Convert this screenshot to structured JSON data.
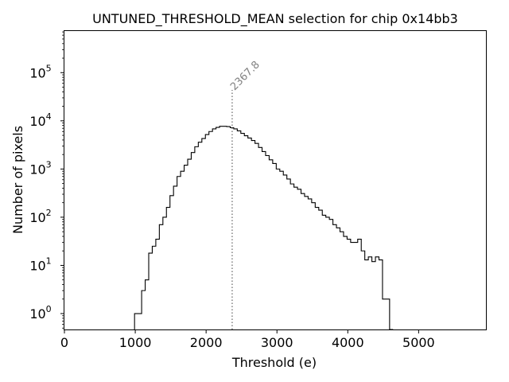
{
  "chart_data": {
    "type": "histogram",
    "title": "UNTUNED_THRESHOLD_MEAN selection for chip 0x14bb3",
    "xlabel": "Threshold (e)",
    "ylabel": "Number of pixels",
    "xlim": [
      0,
      5950
    ],
    "ylog_exponent_range": [
      -0.33,
      5.88
    ],
    "x_ticks": [
      0,
      1000,
      2000,
      3000,
      4000,
      5000
    ],
    "x_tick_labels": [
      "0",
      "1000",
      "2000",
      "3000",
      "4000",
      "5000"
    ],
    "y_ticks": [
      0,
      1,
      2,
      3,
      4,
      5
    ],
    "y_tick_base": "10",
    "mean_line": {
      "value": 2367.8,
      "label": "2367.8",
      "color": "#808080"
    },
    "bins": {
      "start": 990,
      "width": 50,
      "counts": [
        1,
        1,
        3,
        5,
        18,
        25,
        35,
        70,
        100,
        160,
        280,
        440,
        700,
        900,
        1200,
        1600,
        2200,
        2900,
        3600,
        4300,
        5200,
        6000,
        6800,
        7300,
        7700,
        7700,
        7600,
        7200,
        6800,
        6200,
        5500,
        4900,
        4400,
        3900,
        3400,
        2800,
        2300,
        1900,
        1550,
        1300,
        1000,
        900,
        750,
        620,
        490,
        420,
        380,
        310,
        270,
        240,
        200,
        160,
        140,
        110,
        100,
        90,
        70,
        60,
        50,
        40,
        35,
        30,
        30,
        35,
        20,
        13,
        15,
        12,
        15,
        13,
        2,
        2,
        0
      ]
    }
  }
}
